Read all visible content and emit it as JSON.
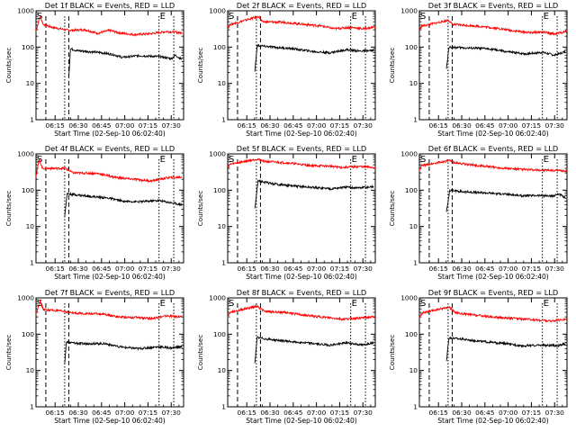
{
  "figure": {
    "common": {
      "xlabel": "Start Time (02-Sep-10 06:02:40)",
      "ylabel": "Counts/sec",
      "x_tick_labels": [
        "06:15",
        "06:30",
        "06:45",
        "07:00",
        "07:15",
        "07:30"
      ],
      "y_tick_labels": [
        "1",
        "10",
        "100",
        "1000"
      ],
      "mark_s": "S",
      "mark_e": "E",
      "colors": {
        "events": "#000000",
        "lld": "#ff0000",
        "axes": "#000000"
      }
    }
  },
  "chart_data": [
    {
      "type": "line",
      "title": "Det 1f BLACK = Events, RED = LLD",
      "xlim": [
        "06:02:40",
        "07:38:00"
      ],
      "ylim": [
        1,
        1000
      ],
      "yscale": "log",
      "series": [
        {
          "values": [
            [
              0,
              280
            ],
            [
              5,
              700
            ],
            [
              9,
              420
            ],
            [
              20,
              350
            ],
            [
              40,
              290
            ],
            [
              60,
              300
            ],
            [
              75,
              240
            ],
            [
              90,
              290
            ],
            [
              100,
              250
            ],
            [
              120,
              220
            ],
            [
              140,
              235
            ],
            [
              160,
              270
            ],
            [
              178,
              245
            ]
          ]
        },
        {
          "values": [
            [
              40,
              15
            ],
            [
              42,
              90
            ],
            [
              50,
              80
            ],
            [
              80,
              70
            ],
            [
              95,
              62
            ],
            [
              105,
              52
            ],
            [
              125,
              58
            ],
            [
              150,
              55
            ],
            [
              165,
              48
            ],
            [
              170,
              60
            ],
            [
              178,
              45
            ]
          ]
        }
      ]
    },
    {
      "type": "line",
      "title": "Det 2f BLACK = Events, RED = LLD",
      "xlim": [
        "06:02:40",
        "07:38:00"
      ],
      "ylim": [
        1,
        1000
      ],
      "yscale": "log",
      "series": [
        {
          "values": [
            [
              0,
              320
            ],
            [
              3,
              420
            ],
            [
              38,
              700
            ],
            [
              42,
              500
            ],
            [
              70,
              480
            ],
            [
              95,
              420
            ],
            [
              115,
              380
            ],
            [
              130,
              320
            ],
            [
              150,
              350
            ],
            [
              165,
              320
            ],
            [
              180,
              360
            ]
          ]
        },
        {
          "values": [
            [
              33,
              20
            ],
            [
              36,
              110
            ],
            [
              55,
              100
            ],
            [
              80,
              90
            ],
            [
              105,
              75
            ],
            [
              125,
              70
            ],
            [
              145,
              85
            ],
            [
              160,
              78
            ],
            [
              178,
              80
            ]
          ]
        }
      ]
    },
    {
      "type": "line",
      "title": "Det 3f BLACK = Events, RED = LLD",
      "xlim": [
        "06:02:40",
        "07:38:00"
      ],
      "ylim": [
        1,
        1000
      ],
      "yscale": "log",
      "series": [
        {
          "values": [
            [
              0,
              300
            ],
            [
              3,
              380
            ],
            [
              36,
              550
            ],
            [
              40,
              420
            ],
            [
              70,
              380
            ],
            [
              95,
              330
            ],
            [
              115,
              280
            ],
            [
              135,
              250
            ],
            [
              150,
              260
            ],
            [
              165,
              230
            ],
            [
              180,
              270
            ]
          ]
        },
        {
          "values": [
            [
              33,
              25
            ],
            [
              36,
              100
            ],
            [
              55,
              95
            ],
            [
              85,
              90
            ],
            [
              105,
              75
            ],
            [
              130,
              65
            ],
            [
              150,
              72
            ],
            [
              165,
              60
            ],
            [
              178,
              75
            ]
          ]
        }
      ]
    },
    {
      "type": "line",
      "title": "Det 4f BLACK = Events, RED = LLD",
      "xlim": [
        "06:02:40",
        "07:38:00"
      ],
      "ylim": [
        1,
        1000
      ],
      "yscale": "log",
      "series": [
        {
          "values": [
            [
              0,
              250
            ],
            [
              4,
              700
            ],
            [
              8,
              400
            ],
            [
              36,
              400
            ],
            [
              45,
              300
            ],
            [
              75,
              290
            ],
            [
              100,
              220
            ],
            [
              120,
              200
            ],
            [
              140,
              180
            ],
            [
              160,
              220
            ],
            [
              178,
              230
            ]
          ]
        },
        {
          "values": [
            [
              35,
              20
            ],
            [
              38,
              80
            ],
            [
              60,
              70
            ],
            [
              90,
              60
            ],
            [
              105,
              50
            ],
            [
              125,
              48
            ],
            [
              150,
              52
            ],
            [
              165,
              45
            ],
            [
              178,
              40
            ]
          ]
        }
      ]
    },
    {
      "type": "line",
      "title": "Det 5f BLACK = Events, RED = LLD",
      "xlim": [
        "06:02:40",
        "07:38:00"
      ],
      "ylim": [
        1,
        1000
      ],
      "yscale": "log",
      "series": [
        {
          "values": [
            [
              0,
              400
            ],
            [
              3,
              520
            ],
            [
              36,
              720
            ],
            [
              45,
              620
            ],
            [
              75,
              560
            ],
            [
              100,
              480
            ],
            [
              125,
              460
            ],
            [
              140,
              420
            ],
            [
              160,
              450
            ],
            [
              180,
              420
            ]
          ]
        },
        {
          "values": [
            [
              33,
              30
            ],
            [
              37,
              180
            ],
            [
              55,
              150
            ],
            [
              80,
              130
            ],
            [
              100,
              120
            ],
            [
              125,
              110
            ],
            [
              145,
              120
            ],
            [
              160,
              115
            ],
            [
              178,
              125
            ]
          ]
        }
      ]
    },
    {
      "type": "line",
      "title": "Det 6f BLACK = Events, RED = LLD",
      "xlim": [
        "06:02:40",
        "07:38:00"
      ],
      "ylim": [
        1,
        1000
      ],
      "yscale": "log",
      "series": [
        {
          "values": [
            [
              0,
              350
            ],
            [
              3,
              480
            ],
            [
              36,
              650
            ],
            [
              45,
              560
            ],
            [
              70,
              480
            ],
            [
              95,
              420
            ],
            [
              120,
              380
            ],
            [
              140,
              360
            ],
            [
              160,
              350
            ],
            [
              180,
              340
            ]
          ]
        },
        {
          "values": [
            [
              33,
              25
            ],
            [
              37,
              100
            ],
            [
              55,
              90
            ],
            [
              80,
              85
            ],
            [
              105,
              78
            ],
            [
              125,
              70
            ],
            [
              145,
              72
            ],
            [
              162,
              68
            ],
            [
              170,
              80
            ],
            [
              178,
              60
            ]
          ]
        }
      ]
    },
    {
      "type": "line",
      "title": "Det 7f BLACK = Events, RED = LLD",
      "xlim": [
        "06:02:40",
        "07:38:00"
      ],
      "ylim": [
        1,
        1000
      ],
      "yscale": "log",
      "series": [
        {
          "values": [
            [
              0,
              380
            ],
            [
              5,
              800
            ],
            [
              9,
              480
            ],
            [
              36,
              420
            ],
            [
              45,
              380
            ],
            [
              80,
              360
            ],
            [
              100,
              300
            ],
            [
              120,
              290
            ],
            [
              140,
              270
            ],
            [
              160,
              320
            ],
            [
              178,
              300
            ]
          ]
        },
        {
          "values": [
            [
              35,
              15
            ],
            [
              37,
              60
            ],
            [
              55,
              55
            ],
            [
              85,
              55
            ],
            [
              100,
              45
            ],
            [
              125,
              40
            ],
            [
              150,
              45
            ],
            [
              165,
              42
            ],
            [
              178,
              45
            ]
          ]
        }
      ]
    },
    {
      "type": "line",
      "title": "Det 8f BLACK = Events, RED = LLD",
      "xlim": [
        "06:02:40",
        "07:38:00"
      ],
      "ylim": [
        1,
        1000
      ],
      "yscale": "log",
      "series": [
        {
          "values": [
            [
              0,
              300
            ],
            [
              3,
              400
            ],
            [
              36,
              600
            ],
            [
              45,
              420
            ],
            [
              70,
              400
            ],
            [
              95,
              330
            ],
            [
              120,
              290
            ],
            [
              140,
              260
            ],
            [
              160,
              280
            ],
            [
              180,
              300
            ]
          ]
        },
        {
          "values": [
            [
              33,
              15
            ],
            [
              36,
              80
            ],
            [
              55,
              70
            ],
            [
              80,
              62
            ],
            [
              105,
              55
            ],
            [
              125,
              50
            ],
            [
              145,
              58
            ],
            [
              165,
              50
            ],
            [
              178,
              60
            ]
          ]
        }
      ]
    },
    {
      "type": "line",
      "title": "Det 9f BLACK = Events, RED = LLD",
      "xlim": [
        "06:02:40",
        "07:38:00"
      ],
      "ylim": [
        1,
        1000
      ],
      "yscale": "log",
      "series": [
        {
          "values": [
            [
              0,
              280
            ],
            [
              3,
              380
            ],
            [
              36,
              560
            ],
            [
              45,
              380
            ],
            [
              70,
              330
            ],
            [
              95,
              290
            ],
            [
              120,
              270
            ],
            [
              140,
              250
            ],
            [
              160,
              230
            ],
            [
              180,
              260
            ]
          ]
        },
        {
          "values": [
            [
              33,
              18
            ],
            [
              36,
              80
            ],
            [
              55,
              72
            ],
            [
              85,
              60
            ],
            [
              105,
              55
            ],
            [
              125,
              48
            ],
            [
              150,
              50
            ],
            [
              170,
              48
            ],
            [
              178,
              55
            ]
          ]
        }
      ]
    }
  ]
}
